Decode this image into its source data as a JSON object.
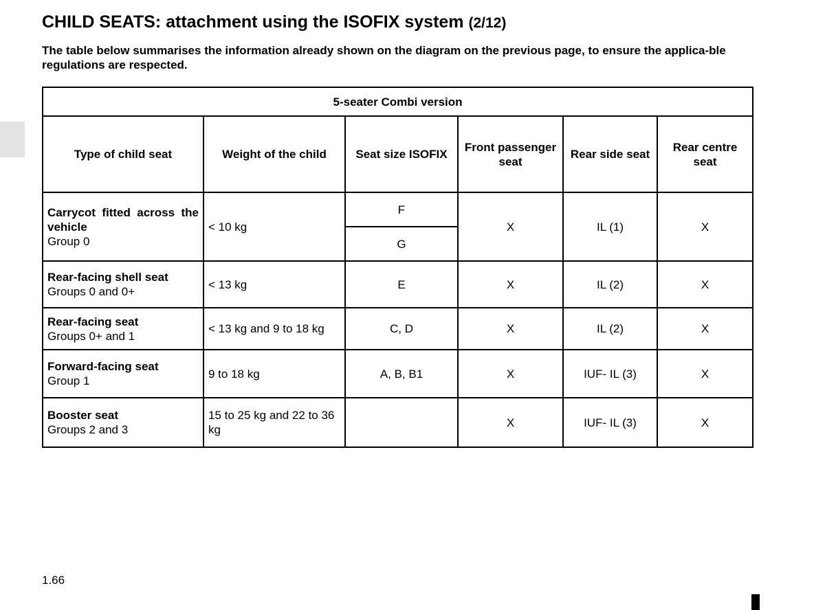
{
  "page": {
    "title": "CHILD SEATS: attachment using the ISOFIX system",
    "title_part": "(2/12)",
    "intro": "The table below summarises the information already shown on the diagram on the previous page, to ensure the applica-ble regulations are respected.",
    "page_number": "1.66"
  },
  "table": {
    "caption": "5-seater Combi version",
    "headers": [
      "Type of child seat",
      "Weight of the child",
      "Seat size ISOFIX",
      "Front passenger seat",
      "Rear side seat",
      "Rear centre seat"
    ],
    "rows": [
      {
        "name": "Carrycot fitted across the vehicle",
        "group": "Group 0",
        "weight": "< 10 kg",
        "sizes": [
          "F",
          "G"
        ],
        "front": "X",
        "rear_side": "IL (1)",
        "rear_centre": "X"
      },
      {
        "name": "Rear-facing shell seat",
        "group": "Groups 0 and 0+",
        "weight": "< 13 kg",
        "size": "E",
        "front": "X",
        "rear_side": "IL (2)",
        "rear_centre": "X"
      },
      {
        "name": "Rear-facing seat",
        "group": "Groups 0+ and 1",
        "weight": "< 13 kg and 9 to 18 kg",
        "size": "C, D",
        "front": "X",
        "rear_side": "IL (2)",
        "rear_centre": "X"
      },
      {
        "name": "Forward-facing seat",
        "group": "Group 1",
        "weight": "9 to 18 kg",
        "size": "A, B, B1",
        "front": "X",
        "rear_side": "IUF- IL (3)",
        "rear_centre": "X"
      },
      {
        "name": "Booster seat",
        "group": "Groups 2 and 3",
        "weight": "15 to 25 kg and 22 to 36 kg",
        "size": "",
        "front": "X",
        "rear_side": "IUF- IL (3)",
        "rear_centre": "X"
      }
    ]
  }
}
